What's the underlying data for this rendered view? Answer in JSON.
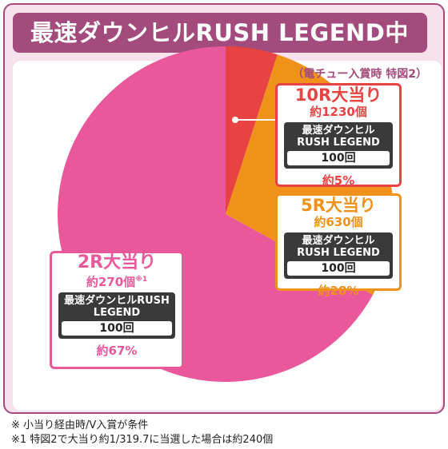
{
  "title": "最速ダウンヒルRUSH LEGEND中",
  "subnote": "（電チュー入賞時 特図2）",
  "colors": {
    "frame": "#a34b7c",
    "r10": "#e84343",
    "r5": "#f0921a",
    "r2": "#e8589a"
  },
  "segments": [
    {
      "head": "10R大当り",
      "sub": "約1230個",
      "sub_mark": "",
      "mode": "最速ダウンヒルRUSH LEGEND",
      "count": "100回",
      "pct": "約5%"
    },
    {
      "head": "5R大当り",
      "sub": "約630個",
      "sub_mark": "",
      "mode": "最速ダウンヒルRUSH LEGEND",
      "count": "100回",
      "pct": "約28%"
    },
    {
      "head": "2R大当り",
      "sub": "約270個",
      "sub_mark": "※1",
      "mode": "最速ダウンヒルRUSH LEGEND",
      "count": "100回",
      "pct": "約67%"
    }
  ],
  "chart_data": {
    "type": "pie",
    "categories": [
      "10R大当り",
      "5R大当り",
      "2R大当り"
    ],
    "values": [
      5,
      28,
      67
    ],
    "colors": [
      "#e84343",
      "#f0921a",
      "#e8589a"
    ]
  },
  "footnotes": [
    "※ 小当り経由時/V入賞が条件",
    "※1 特図2で大当り約1/319.7に当選した場合は約240個"
  ]
}
